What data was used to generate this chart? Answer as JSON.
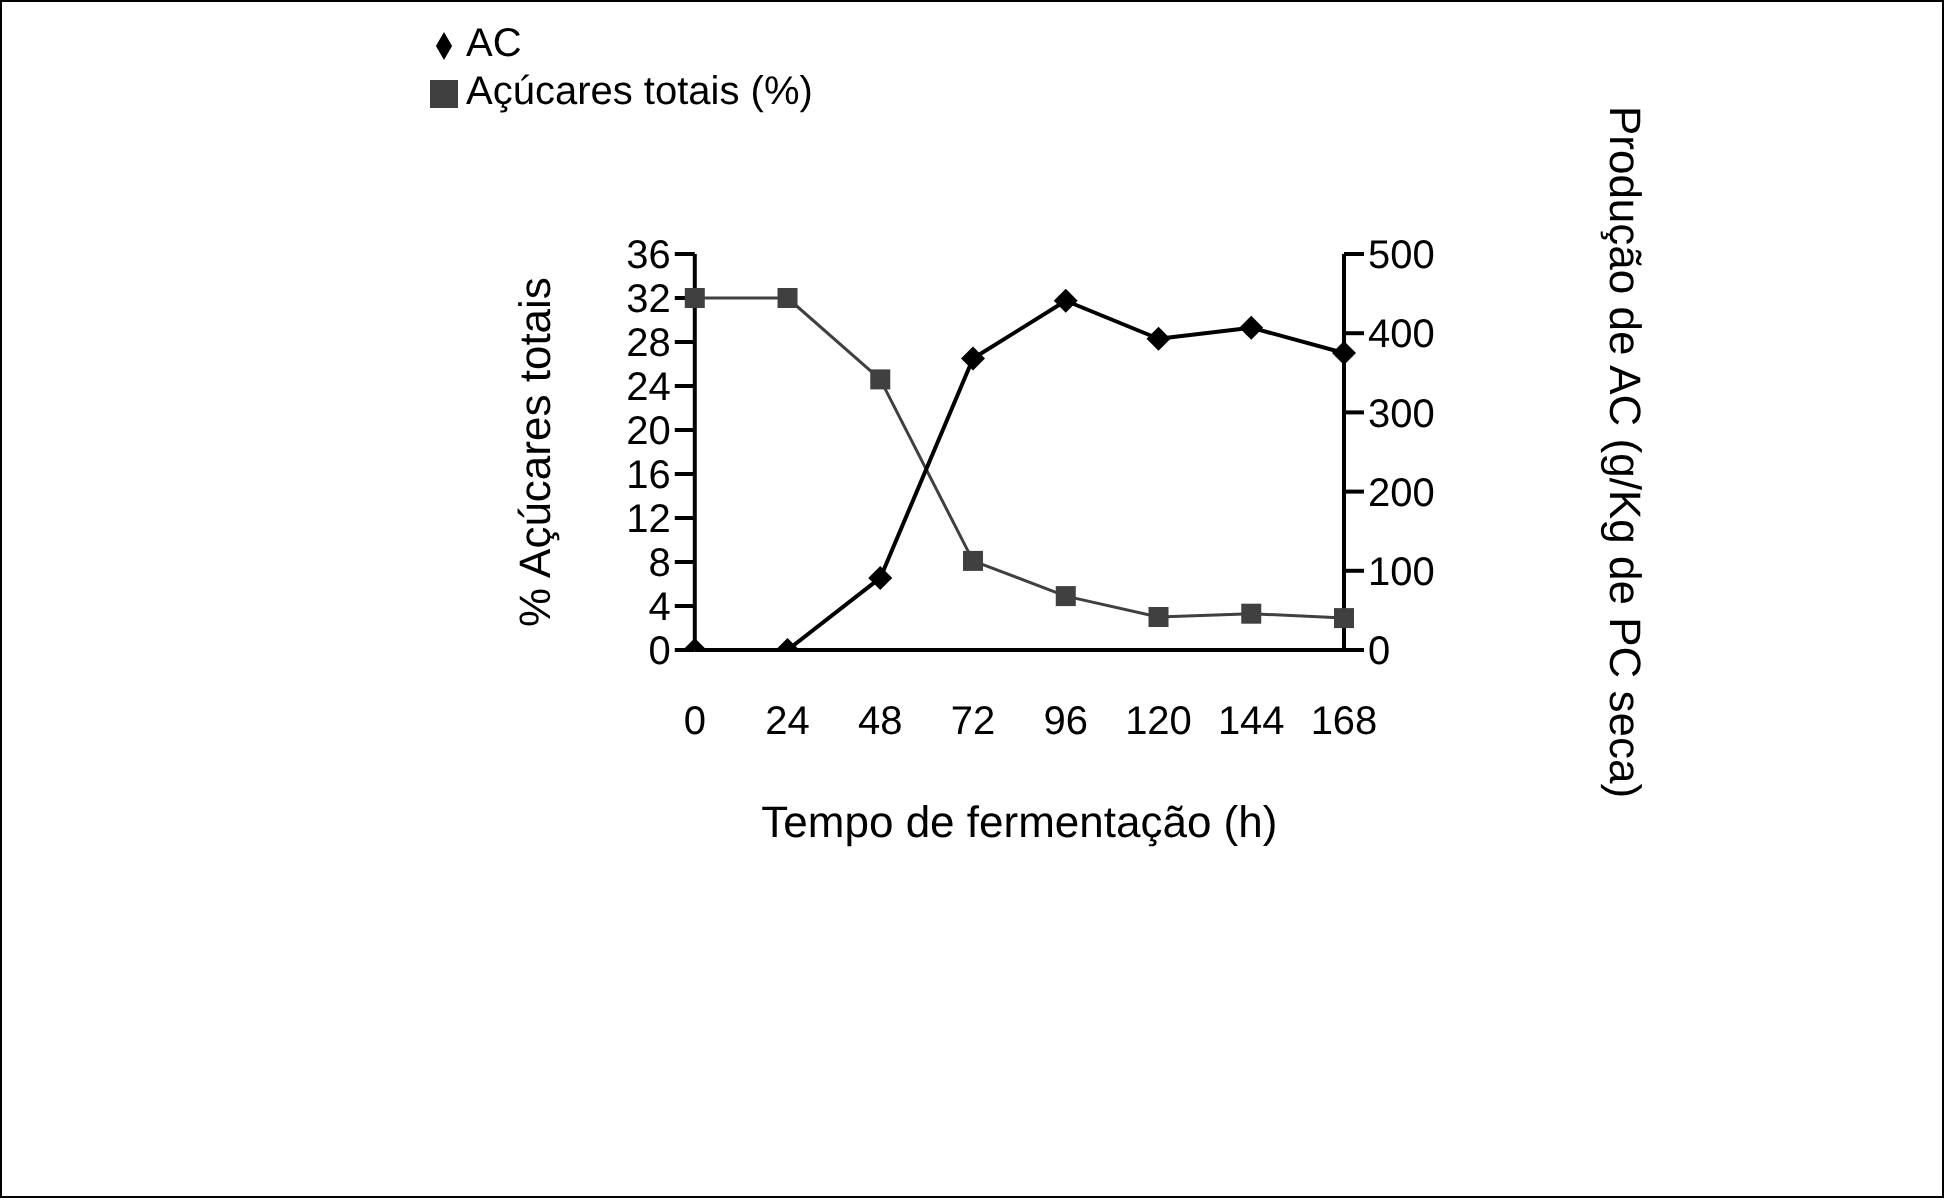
{
  "chart_data": {
    "type": "line",
    "xlabel": "Tempo de fermentação (h)",
    "ylabel": "% Açúcares totais",
    "y2label": "Produção de AC (g/Kg de PC seca)",
    "categories": [
      "0",
      "24",
      "48",
      "72",
      "96",
      "120",
      "144",
      "168"
    ],
    "series": [
      {
        "name": "Açúcares totais (%)",
        "color": "#404040",
        "marker": "square",
        "values": [
          32,
          32,
          24.6,
          8.1,
          4.9,
          3.0,
          3.3,
          2.9
        ]
      },
      {
        "name": "AC",
        "color": "#000000",
        "marker": "diamond",
        "axis": "y2",
        "values": [
          0,
          0,
          91,
          368,
          441,
          393,
          407,
          375
        ]
      }
    ],
    "ylim": [
      0,
      36
    ],
    "yticks": [
      0,
      4,
      8,
      12,
      16,
      20,
      24,
      28,
      32,
      36
    ],
    "y2lim": [
      0,
      500
    ],
    "y2ticks": [
      0,
      100,
      200,
      300,
      400,
      500
    ],
    "legend": "top left",
    "grid": false
  }
}
